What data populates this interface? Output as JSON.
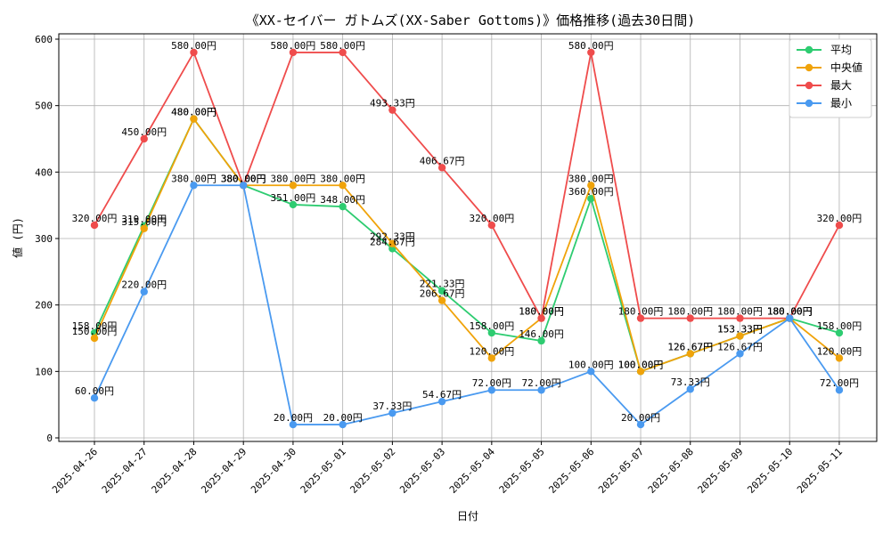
{
  "chart_data": {
    "type": "line",
    "title": "《XX-セイバー ガトムズ(XX-Saber Gottoms)》価格推移(過去30日間)",
    "xlabel": "日付",
    "ylabel": "値 (円)",
    "ylim": [
      0,
      600
    ],
    "yticks": [
      "0",
      "100",
      "200",
      "300",
      "400",
      "500",
      "600"
    ],
    "grid": true,
    "legend_position": "top-right",
    "categories": [
      "2025-04-26",
      "2025-04-27",
      "2025-04-28",
      "2025-04-29",
      "2025-04-30",
      "2025-05-01",
      "2025-05-02",
      "2025-05-03",
      "2025-05-04",
      "2025-05-05",
      "2025-05-06",
      "2025-05-07",
      "2025-05-08",
      "2025-05-09",
      "2025-05-10",
      "2025-05-11"
    ],
    "series": [
      {
        "name": "平均",
        "color": "#2ecc71",
        "values": [
          158.0,
          319.0,
          480.0,
          380.0,
          351.0,
          348.0,
          284.67,
          221.33,
          158.0,
          146.0,
          360.0,
          100.0,
          126.67,
          153.33,
          180.0,
          158.0
        ],
        "labels": [
          "158.00円",
          "319.00円",
          "480.00円",
          "380.00円",
          "351.00円",
          "348.00円",
          "284.67円",
          "221.33円",
          "158.00円",
          "146.00円",
          "360.00円",
          "100.00円",
          "126.67円",
          "153.33円",
          "180.00円",
          "158.00円"
        ]
      },
      {
        "name": "中央値",
        "color": "#f0a30a",
        "values": [
          150.0,
          315.0,
          480.0,
          380.0,
          380.0,
          380.0,
          292.33,
          206.67,
          120.0,
          180.0,
          380.0,
          100.0,
          126.67,
          153.33,
          180.0,
          120.0
        ],
        "labels": [
          "150.00円",
          "315.00円",
          "480.00円",
          "380.00円",
          "380.00円",
          "380.00円",
          "292.33円",
          "206.67円",
          "120.00円",
          "180.00円",
          "380.00円",
          "100.00円",
          "126.67円",
          "153.33円",
          "180.00円",
          "120.00円"
        ]
      },
      {
        "name": "最大",
        "color": "#ef4c4c",
        "values": [
          320.0,
          450.0,
          580.0,
          380.0,
          580.0,
          580.0,
          493.33,
          406.67,
          320.0,
          180.0,
          580.0,
          180.0,
          180.0,
          180.0,
          180.0,
          320.0
        ],
        "labels": [
          "320.00円",
          "450.00円",
          "580.00円",
          "380.00円",
          "580.00円",
          "580.00円",
          "493.33円",
          "406.67円",
          "320.00円",
          "180.00円",
          "580.00円",
          "180.00円",
          "180.00円",
          "180.00円",
          "180.00円",
          "320.00円"
        ]
      },
      {
        "name": "最小",
        "color": "#4a9af0",
        "values": [
          60.0,
          220.0,
          380.0,
          380.0,
          20.0,
          20.0,
          37.33,
          54.67,
          72.0,
          72.0,
          100.0,
          20.0,
          73.33,
          126.67,
          180.0,
          72.0
        ],
        "labels": [
          "60.00円",
          "220.00円",
          "380.00円",
          "380.00円",
          "20.00円",
          "20.00円",
          "37.33円",
          "54.67円",
          "72.00円",
          "72.00円",
          "100.00円",
          "20.00円",
          "73.33円",
          "126.67円",
          "180.00円",
          "72.00円"
        ]
      }
    ]
  }
}
